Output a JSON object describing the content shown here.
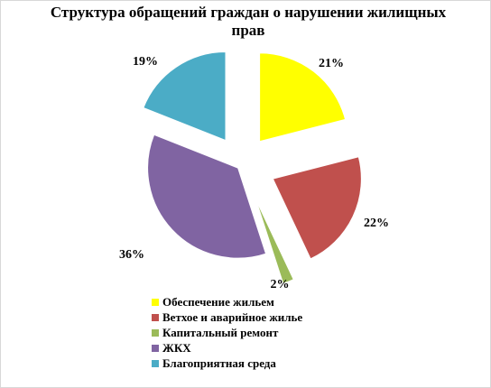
{
  "chart_data": {
    "type": "pie",
    "title": "Структура обращений граждан о нарушении жилищных прав",
    "categories": [
      "Обеспечение жильем",
      "Ветхое и аварийное жилье",
      "Капитальный ремонт",
      "ЖКХ",
      "Благоприятная среда"
    ],
    "values": [
      21,
      22,
      2,
      36,
      19
    ],
    "value_labels": [
      "21%",
      "22%",
      "2%",
      "36%",
      "19%"
    ],
    "colors": [
      "#FFFF00",
      "#C0504D",
      "#9BBB59",
      "#8064A2",
      "#4BACC6"
    ],
    "exploded": true,
    "legend_position": "bottom"
  }
}
